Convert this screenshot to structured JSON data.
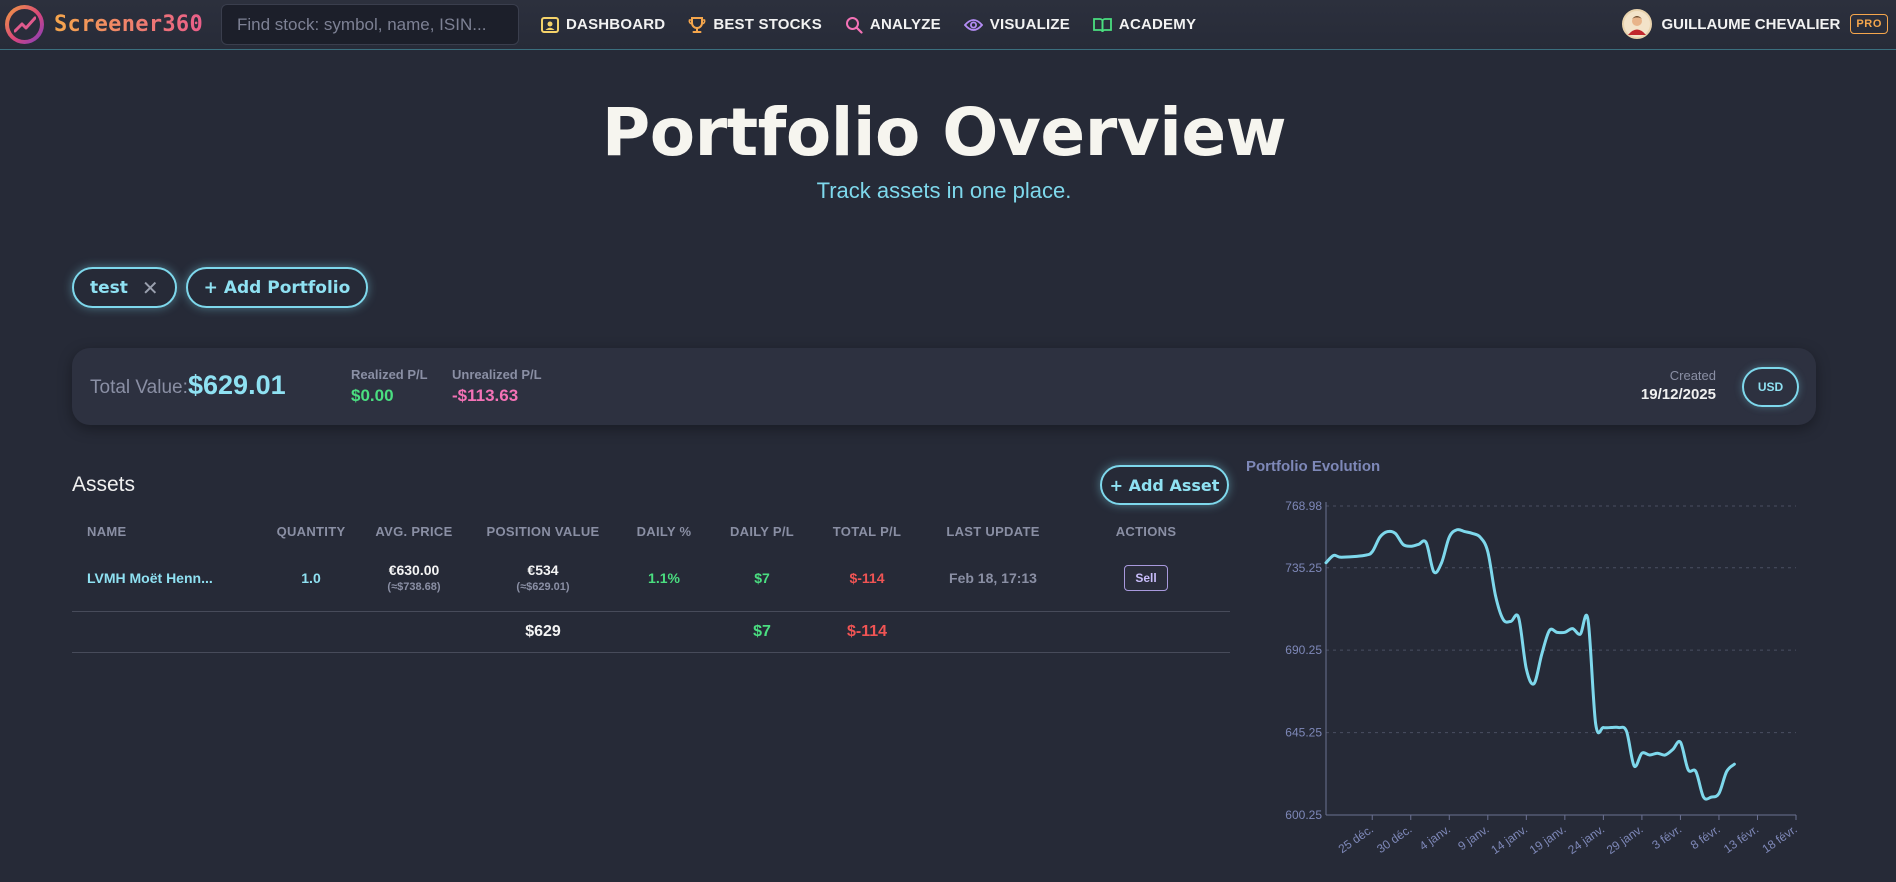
{
  "brand": {
    "name": "Screener360"
  },
  "search": {
    "placeholder": "Find stock: symbol, name, ISIN...",
    "value": ""
  },
  "nav": {
    "items": [
      {
        "label": "DASHBOARD",
        "icon": "dashboard-icon",
        "color": "#f5d36a"
      },
      {
        "label": "BEST STOCKS",
        "icon": "trophy-icon",
        "color": "#f5a64c"
      },
      {
        "label": "ANALYZE",
        "icon": "magnifier-icon",
        "color": "#f472b6"
      },
      {
        "label": "VISUALIZE",
        "icon": "eye-icon",
        "color": "#b48cf5"
      },
      {
        "label": "ACADEMY",
        "icon": "book-icon",
        "color": "#4ade80"
      }
    ]
  },
  "user": {
    "name": "GUILLAUME CHEVALIER",
    "badge": "PRO"
  },
  "hero": {
    "title": "Portfolio Overview",
    "subtitle": "Track assets in one place."
  },
  "portfolios": {
    "tabs": [
      {
        "label": "test",
        "close": "✕"
      }
    ],
    "add_label": "+ Add Portfolio"
  },
  "summary": {
    "total_value_label": "Total Value:",
    "total_value": "$629.01",
    "realized_label": "Realized P/L",
    "realized_value": "$0.00",
    "unrealized_label": "Unrealized P/L",
    "unrealized_value": "-$113.63",
    "created_label": "Created",
    "created_value": "19/12/2025",
    "currency": "USD"
  },
  "assets": {
    "title": "Assets",
    "add_label": "+ Add Asset",
    "columns": [
      "NAME",
      "QUANTITY",
      "AVG. PRICE",
      "POSITION VALUE",
      "DAILY %",
      "DAILY P/L",
      "TOTAL P/L",
      "LAST UPDATE",
      "ACTIONS"
    ],
    "rows": [
      {
        "name": "LVMH Moët Henn...",
        "quantity": "1.0",
        "avg_price": "€630.00",
        "avg_price_converted": "(≈$738.68)",
        "position_value": "€534",
        "position_value_converted": "(≈$629.01)",
        "daily_pct": "1.1%",
        "daily_pl": "$7",
        "total_pl": "$-114",
        "last_update": "Feb 18, 17:13",
        "action": "Sell"
      }
    ],
    "totals": {
      "position_value": "$629",
      "daily_pl": "$7",
      "total_pl": "$-114"
    }
  },
  "colors": {
    "accent": "#7ed8ec",
    "positive": "#4ade80",
    "negative": "#f05454",
    "unrealized": "#f472b6"
  },
  "chart_data": {
    "type": "line",
    "title": "Portfolio Evolution",
    "ylim": [
      600.25,
      768.98
    ],
    "yticks": [
      "768.98",
      "735.25",
      "690.25",
      "645.25",
      "600.25"
    ],
    "ytick_values": [
      768.98,
      735.25,
      690.25,
      645.25,
      600.25
    ],
    "xticks": [
      "25 déc.",
      "30 déc.",
      "4 janv.",
      "9 janv.",
      "14 janv.",
      "19 janv.",
      "24 janv.",
      "29 janv.",
      "3 févr.",
      "8 févr.",
      "13 févr.",
      "18 févr."
    ],
    "xtick_days": [
      6,
      11,
      16,
      21,
      26,
      31,
      36,
      41,
      46,
      51,
      56,
      61
    ],
    "x_range_days": [
      0,
      61
    ],
    "grid": true,
    "series": [
      {
        "values": [
          [
            0,
            738
          ],
          [
            1,
            742
          ],
          [
            2,
            741
          ],
          [
            5,
            742
          ],
          [
            6,
            744
          ],
          [
            7,
            752
          ],
          [
            8,
            755
          ],
          [
            9,
            754
          ],
          [
            10,
            748
          ],
          [
            11,
            747
          ],
          [
            12,
            748
          ],
          [
            13,
            749
          ],
          [
            14,
            733
          ],
          [
            15,
            738
          ],
          [
            16,
            752
          ],
          [
            17,
            756
          ],
          [
            18,
            755
          ],
          [
            19,
            754
          ],
          [
            20,
            752
          ],
          [
            21,
            744
          ],
          [
            22,
            720
          ],
          [
            23,
            707
          ],
          [
            24,
            706
          ],
          [
            25,
            708
          ],
          [
            26,
            680
          ],
          [
            27,
            672
          ],
          [
            28,
            688
          ],
          [
            29,
            701
          ],
          [
            30,
            700
          ],
          [
            31,
            700
          ],
          [
            32,
            702
          ],
          [
            33,
            699
          ],
          [
            34,
            707
          ],
          [
            35,
            650
          ],
          [
            36,
            648
          ],
          [
            37,
            648
          ],
          [
            38,
            648
          ],
          [
            39,
            646
          ],
          [
            40,
            627
          ],
          [
            41,
            634
          ],
          [
            42,
            633
          ],
          [
            43,
            634
          ],
          [
            44,
            633
          ],
          [
            45,
            636
          ],
          [
            46,
            640
          ],
          [
            47,
            625
          ],
          [
            48,
            624
          ],
          [
            49,
            610
          ],
          [
            50,
            610
          ],
          [
            51,
            612
          ],
          [
            52,
            624
          ],
          [
            53,
            628
          ]
        ]
      }
    ],
    "color": "#7ed8ec"
  }
}
